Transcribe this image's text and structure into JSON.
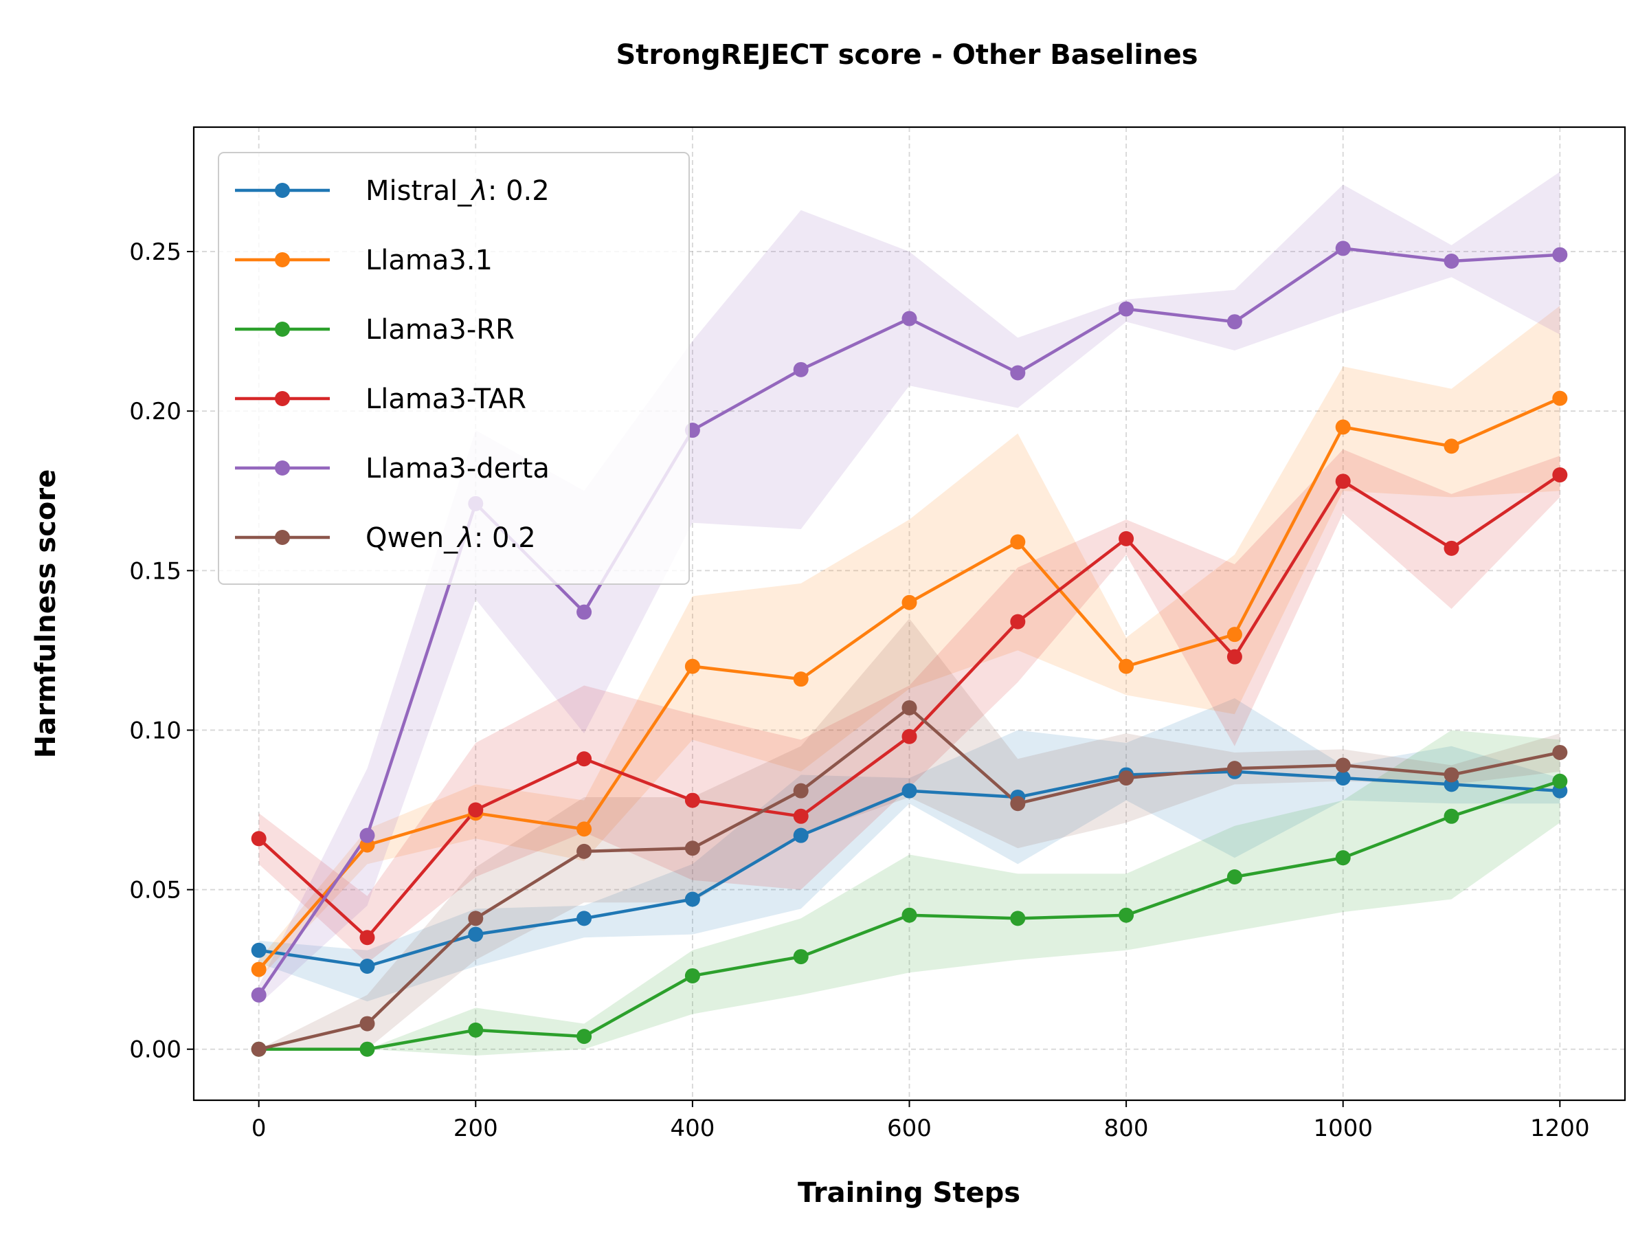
{
  "chart_data": {
    "type": "line",
    "title": "StrongREJECT score - Other Baselines",
    "xlabel": "Training Steps",
    "ylabel": "Harmfulness score",
    "xlim": [
      -60,
      1260
    ],
    "ylim": [
      -0.016,
      0.289
    ],
    "xticks": [
      0,
      200,
      400,
      600,
      800,
      1000,
      1200
    ],
    "xtick_labels": [
      "0",
      "200",
      "400",
      "600",
      "800",
      "1000",
      "1200"
    ],
    "yticks": [
      0.0,
      0.05,
      0.1,
      0.15,
      0.2,
      0.25
    ],
    "ytick_labels": [
      "0.00",
      "0.05",
      "0.10",
      "0.15",
      "0.20",
      "0.25"
    ],
    "grid": true,
    "legend_position": "top-left",
    "x": [
      0,
      100,
      200,
      300,
      400,
      500,
      600,
      700,
      800,
      900,
      1000,
      1100,
      1200
    ],
    "series": [
      {
        "name": "Mistral_λ:0.2",
        "legend_prefix": "Mistral_",
        "legend_symbol": "λ",
        "legend_suffix": ": 0.2",
        "color": "#1f77b4",
        "values": [
          0.031,
          0.026,
          0.036,
          0.041,
          0.047,
          0.067,
          0.081,
          0.079,
          0.086,
          0.087,
          0.085,
          0.083,
          0.081
        ],
        "lower": [
          0.027,
          0.015,
          0.026,
          0.035,
          0.036,
          0.044,
          0.077,
          0.058,
          0.078,
          0.06,
          0.078,
          0.077,
          0.077
        ],
        "upper": [
          0.034,
          0.031,
          0.044,
          0.045,
          0.058,
          0.086,
          0.085,
          0.1,
          0.096,
          0.11,
          0.089,
          0.095,
          0.085
        ]
      },
      {
        "name": "Llama3.1",
        "legend_prefix": "Llama3.1",
        "legend_symbol": "",
        "legend_suffix": "",
        "color": "#ff7f0e",
        "values": [
          0.025,
          0.064,
          0.074,
          0.069,
          0.12,
          0.116,
          0.14,
          0.159,
          0.12,
          0.13,
          0.195,
          0.189,
          0.204
        ],
        "lower": [
          0.022,
          0.058,
          0.066,
          0.059,
          0.097,
          0.087,
          0.113,
          0.125,
          0.111,
          0.105,
          0.175,
          0.173,
          0.175
        ],
        "upper": [
          0.028,
          0.069,
          0.083,
          0.078,
          0.142,
          0.146,
          0.166,
          0.193,
          0.129,
          0.155,
          0.214,
          0.207,
          0.233
        ]
      },
      {
        "name": "Llama3-RR",
        "legend_prefix": "Llama3-RR",
        "legend_symbol": "",
        "legend_suffix": "",
        "color": "#2ca02c",
        "values": [
          0.0,
          0.0,
          0.006,
          0.004,
          0.023,
          0.029,
          0.042,
          0.041,
          0.042,
          0.054,
          0.06,
          0.073,
          0.084
        ],
        "lower": [
          0.0,
          0.0,
          -0.002,
          0.0,
          0.011,
          0.017,
          0.024,
          0.028,
          0.031,
          0.037,
          0.043,
          0.047,
          0.071
        ],
        "upper": [
          0.0,
          0.0,
          0.013,
          0.008,
          0.031,
          0.041,
          0.061,
          0.055,
          0.055,
          0.07,
          0.078,
          0.1,
          0.097
        ]
      },
      {
        "name": "Llama3-TAR",
        "legend_prefix": "Llama3-TAR",
        "legend_symbol": "",
        "legend_suffix": "",
        "color": "#d62728",
        "values": [
          0.066,
          0.035,
          0.075,
          0.091,
          0.078,
          0.073,
          0.098,
          0.134,
          0.16,
          0.123,
          0.178,
          0.157,
          0.18
        ],
        "lower": [
          0.058,
          0.027,
          0.054,
          0.068,
          0.053,
          0.05,
          0.082,
          0.115,
          0.155,
          0.095,
          0.168,
          0.138,
          0.173
        ],
        "upper": [
          0.074,
          0.048,
          0.096,
          0.114,
          0.105,
          0.097,
          0.114,
          0.151,
          0.166,
          0.152,
          0.188,
          0.174,
          0.186
        ]
      },
      {
        "name": "Llama3-derta",
        "legend_prefix": "Llama3-derta",
        "legend_symbol": "",
        "legend_suffix": "",
        "color": "#9467bd",
        "values": [
          0.017,
          0.067,
          0.171,
          0.137,
          0.194,
          0.213,
          0.229,
          0.212,
          0.232,
          0.228,
          0.251,
          0.247,
          0.249
        ],
        "lower": [
          0.014,
          0.045,
          0.141,
          0.099,
          0.165,
          0.163,
          0.208,
          0.201,
          0.228,
          0.219,
          0.231,
          0.242,
          0.224
        ],
        "upper": [
          0.02,
          0.088,
          0.194,
          0.175,
          0.222,
          0.263,
          0.25,
          0.223,
          0.235,
          0.238,
          0.271,
          0.252,
          0.275
        ]
      },
      {
        "name": "Qwen_λ:0.2",
        "legend_prefix": "Qwen_",
        "legend_symbol": "λ",
        "legend_suffix": ": 0.2",
        "color": "#8c564b",
        "values": [
          0.0,
          0.008,
          0.041,
          0.062,
          0.063,
          0.081,
          0.107,
          0.077,
          0.085,
          0.088,
          0.089,
          0.086,
          0.093
        ],
        "lower": [
          0.0,
          0.0,
          0.028,
          0.046,
          0.046,
          0.067,
          0.079,
          0.063,
          0.071,
          0.083,
          0.084,
          0.083,
          0.087
        ],
        "upper": [
          0.0,
          0.017,
          0.057,
          0.079,
          0.079,
          0.095,
          0.135,
          0.091,
          0.099,
          0.093,
          0.094,
          0.089,
          0.099
        ]
      }
    ]
  }
}
